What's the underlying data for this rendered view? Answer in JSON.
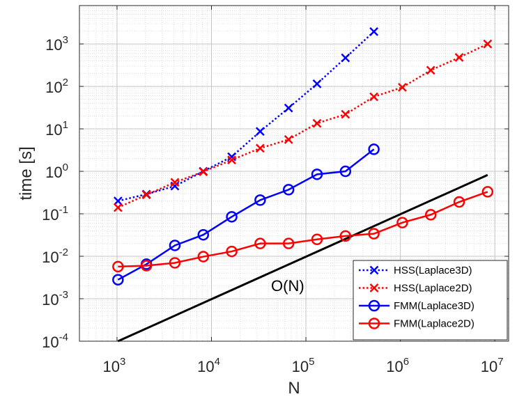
{
  "chart_data": {
    "type": "line",
    "xscale": "log",
    "yscale": "log",
    "xlim": [
      400,
      14000000
    ],
    "ylim": [
      0.0001,
      8000
    ],
    "grid": true,
    "legend": "bottom-right",
    "xlabel": "N",
    "ylabel": "time [s]",
    "x_ticks": [
      1000,
      10000,
      100000,
      1000000,
      10000000
    ],
    "x_tick_labels": [
      {
        "base": "10",
        "exp": "3"
      },
      {
        "base": "10",
        "exp": "4"
      },
      {
        "base": "10",
        "exp": "5"
      },
      {
        "base": "10",
        "exp": "6"
      },
      {
        "base": "10",
        "exp": "7"
      }
    ],
    "y_ticks": [
      0.0001,
      0.001,
      0.01,
      0.1,
      1,
      10,
      100,
      1000
    ],
    "y_tick_labels": [
      {
        "base": "10",
        "exp": "-4"
      },
      {
        "base": "10",
        "exp": "-3"
      },
      {
        "base": "10",
        "exp": "-2"
      },
      {
        "base": "10",
        "exp": "-1"
      },
      {
        "base": "10",
        "exp": "0"
      },
      {
        "base": "10",
        "exp": "1"
      },
      {
        "base": "10",
        "exp": "2"
      },
      {
        "base": "10",
        "exp": "3"
      }
    ],
    "series": [
      {
        "name": "HSS(Laplace3D)",
        "color": "#0000ff",
        "line": "dotted",
        "marker": "x",
        "x": [
          1024,
          2048,
          4096,
          8192,
          16384,
          32768,
          65536,
          131072,
          262144,
          524288
        ],
        "y": [
          0.2,
          0.29,
          0.45,
          1.0,
          2.2,
          8.7,
          31,
          115,
          470,
          1950
        ]
      },
      {
        "name": "HSS(Laplace2D)",
        "color": "#ff0000",
        "line": "dotted",
        "marker": "x",
        "x": [
          1024,
          2048,
          4096,
          8192,
          16384,
          32768,
          65536,
          131072,
          262144,
          524288,
          1048576,
          2097152,
          4194304,
          8388608
        ],
        "y": [
          0.14,
          0.28,
          0.55,
          0.98,
          1.85,
          3.5,
          5.6,
          13.5,
          22,
          57,
          95,
          240,
          480,
          1000
        ]
      },
      {
        "name": "FMM(Laplace3D)",
        "color": "#0000ff",
        "line": "solid",
        "marker": "o",
        "x": [
          1024,
          2048,
          4096,
          8192,
          16384,
          32768,
          65536,
          131072,
          262144,
          524288
        ],
        "y": [
          0.0028,
          0.0065,
          0.018,
          0.032,
          0.085,
          0.21,
          0.37,
          0.85,
          1.0,
          3.3
        ]
      },
      {
        "name": "FMM(Laplace2D)",
        "color": "#ff0000",
        "line": "solid",
        "marker": "o",
        "x": [
          1024,
          2048,
          4096,
          8192,
          16384,
          32768,
          65536,
          131072,
          262144,
          524288,
          1048576,
          2097152,
          4194304,
          8388608
        ],
        "y": [
          0.0057,
          0.006,
          0.007,
          0.0098,
          0.013,
          0.02,
          0.02,
          0.025,
          0.03,
          0.034,
          0.062,
          0.095,
          0.19,
          0.33
        ]
      }
    ],
    "reference_line": {
      "label": "O(N)",
      "color": "#000000",
      "x": [
        1024,
        8388608
      ],
      "y": [
        0.0001,
        0.82
      ]
    }
  }
}
